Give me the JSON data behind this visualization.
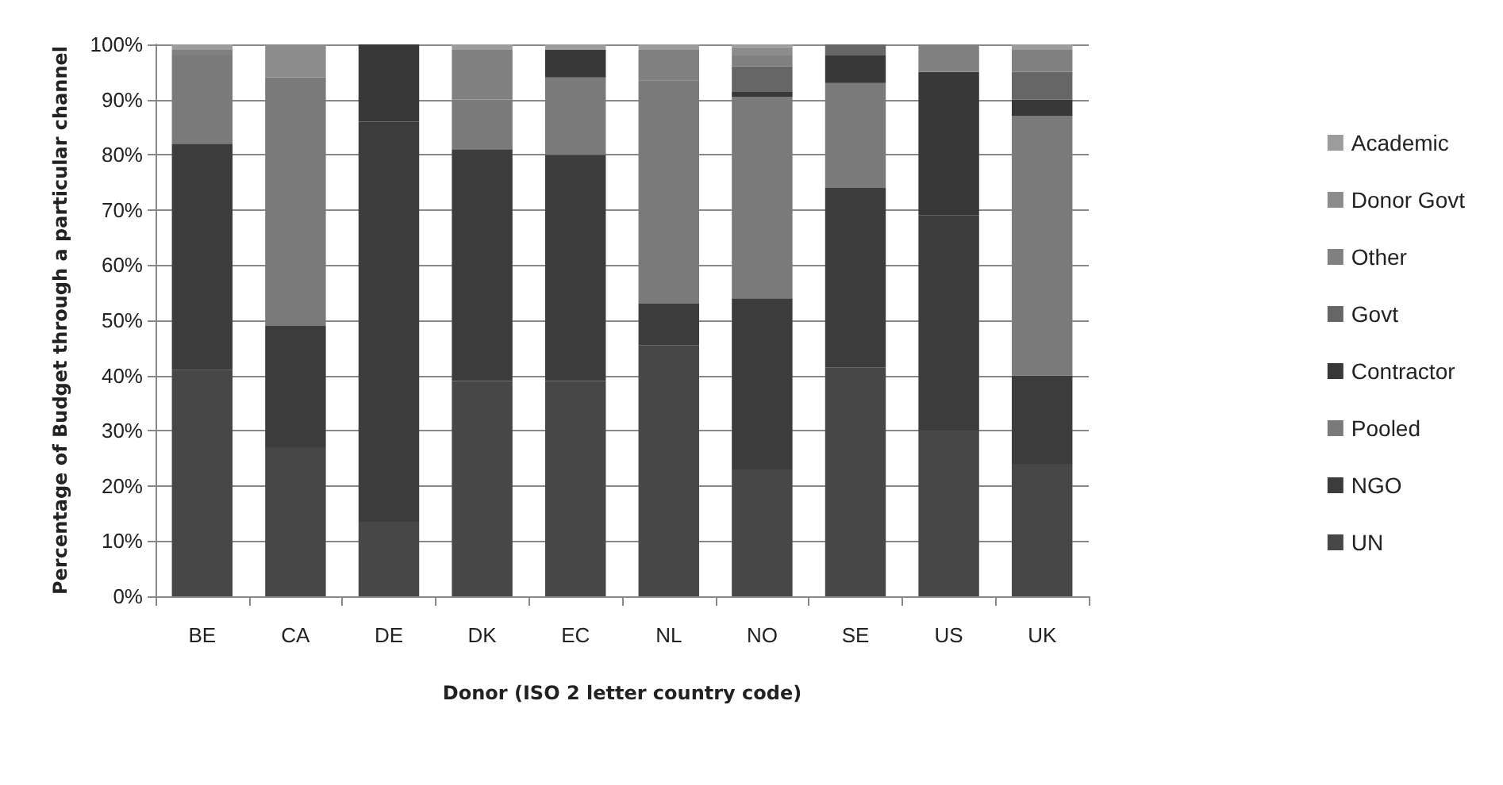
{
  "chart_data": {
    "type": "bar",
    "stacked": true,
    "xlabel": "Donor (ISO 2 letter country code)",
    "ylabel": "Percentage of Budget through a particular channel",
    "categories": [
      "BE",
      "CA",
      "DE",
      "DK",
      "EC",
      "NL",
      "NO",
      "SE",
      "US",
      "UK"
    ],
    "ylim": [
      0,
      100
    ],
    "yticks": [
      {
        "value": 0,
        "label": "0%"
      },
      {
        "value": 10,
        "label": "10%"
      },
      {
        "value": 20,
        "label": "20%"
      },
      {
        "value": 30,
        "label": "30%"
      },
      {
        "value": 40,
        "label": "40%"
      },
      {
        "value": 50,
        "label": "50%"
      },
      {
        "value": 60,
        "label": "60%"
      },
      {
        "value": 70,
        "label": "70%"
      },
      {
        "value": 80,
        "label": "80%"
      },
      {
        "value": 90,
        "label": "90%"
      },
      {
        "value": 100,
        "label": "100%"
      }
    ],
    "grid": "y",
    "legend": "right",
    "series": [
      {
        "name": "UN",
        "color": "#474747",
        "values": [
          41,
          27,
          13.5,
          39,
          39,
          45.5,
          23,
          41.5,
          30,
          24
        ]
      },
      {
        "name": "NGO",
        "color": "#3c3c3c",
        "values": [
          41,
          22,
          72.5,
          42,
          41,
          7.5,
          31,
          32.5,
          39,
          16
        ]
      },
      {
        "name": "Pooled",
        "color": "#7a7a7a",
        "values": [
          16,
          45,
          0,
          9,
          14,
          40.5,
          36.5,
          19,
          0,
          47
        ]
      },
      {
        "name": "Contractor",
        "color": "#383838",
        "values": [
          0,
          0,
          14,
          0,
          5,
          0,
          1,
          5,
          26,
          3
        ]
      },
      {
        "name": "Govt",
        "color": "#666666",
        "values": [
          0,
          0,
          0,
          0,
          0,
          0,
          4.5,
          2,
          0,
          5
        ]
      },
      {
        "name": "Other",
        "color": "#808080",
        "values": [
          1,
          0,
          0,
          9,
          0,
          5.5,
          2,
          0,
          5,
          4
        ]
      },
      {
        "name": "Donor Govt",
        "color": "#8c8c8c",
        "values": [
          0,
          6,
          0,
          0,
          0,
          0,
          1.5,
          0,
          0,
          0
        ]
      },
      {
        "name": "Academic",
        "color": "#9c9c9c",
        "values": [
          1,
          0,
          0,
          1,
          1,
          1,
          0.5,
          0,
          0,
          1
        ]
      }
    ]
  }
}
